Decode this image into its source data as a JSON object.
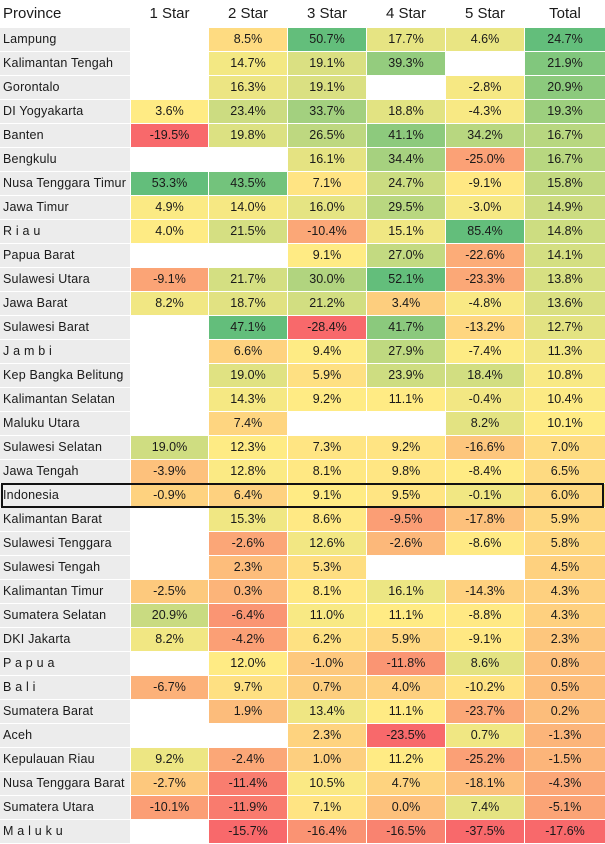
{
  "chart_data": {
    "type": "table",
    "columns": [
      "Province",
      "1 Star",
      "2 Star",
      "3 Star",
      "4 Star",
      "5 Star",
      "Total"
    ],
    "highlight_row": "Indonesia",
    "color_scale": {
      "low": "#f8696b",
      "mid": "#ffeb84",
      "high": "#63be7b"
    },
    "rows": [
      {
        "province": "Lampung",
        "values": [
          null,
          8.5,
          50.7,
          17.7,
          4.6,
          24.7
        ]
      },
      {
        "province": "Kalimantan Tengah",
        "values": [
          null,
          14.7,
          19.1,
          39.3,
          null,
          21.9
        ]
      },
      {
        "province": "Gorontalo",
        "values": [
          null,
          16.3,
          19.1,
          null,
          -2.8,
          20.9
        ]
      },
      {
        "province": "DI Yogyakarta",
        "values": [
          3.6,
          23.4,
          33.7,
          18.8,
          -4.3,
          19.3
        ]
      },
      {
        "province": "Banten",
        "values": [
          -19.5,
          19.8,
          26.5,
          41.1,
          34.2,
          16.7
        ]
      },
      {
        "province": "Bengkulu",
        "values": [
          null,
          null,
          16.1,
          34.4,
          -25.0,
          16.7
        ]
      },
      {
        "province": "Nusa Tenggara Timur",
        "values": [
          53.3,
          43.5,
          7.1,
          24.7,
          -9.1,
          15.8
        ]
      },
      {
        "province": "Jawa Timur",
        "values": [
          4.9,
          14.0,
          16.0,
          29.5,
          -3.0,
          14.9
        ]
      },
      {
        "province": "R i a u",
        "values": [
          4.0,
          21.5,
          -10.4,
          15.1,
          85.4,
          14.8
        ]
      },
      {
        "province": "Papua Barat",
        "values": [
          null,
          null,
          9.1,
          27.0,
          -22.6,
          14.1
        ]
      },
      {
        "province": "Sulawesi Utara",
        "values": [
          -9.1,
          21.7,
          30.0,
          52.1,
          -23.3,
          13.8
        ]
      },
      {
        "province": "Jawa Barat",
        "values": [
          8.2,
          18.7,
          21.2,
          3.4,
          -4.8,
          13.6
        ]
      },
      {
        "province": "Sulawesi Barat",
        "values": [
          null,
          47.1,
          -28.4,
          41.7,
          -13.2,
          12.7
        ]
      },
      {
        "province": "J a m b i",
        "values": [
          null,
          6.6,
          9.4,
          27.9,
          -7.4,
          11.3
        ]
      },
      {
        "province": "Kep Bangka Belitung",
        "values": [
          null,
          19.0,
          5.9,
          23.9,
          18.4,
          10.8
        ]
      },
      {
        "province": "Kalimantan Selatan",
        "values": [
          null,
          14.3,
          9.2,
          11.1,
          -0.4,
          10.4
        ]
      },
      {
        "province": "Maluku Utara",
        "values": [
          null,
          7.4,
          null,
          null,
          8.2,
          10.1
        ]
      },
      {
        "province": "Sulawesi Selatan",
        "values": [
          19.0,
          12.3,
          7.3,
          9.2,
          -16.6,
          7.0
        ]
      },
      {
        "province": "Jawa Tengah",
        "values": [
          -3.9,
          12.8,
          8.1,
          9.8,
          -8.4,
          6.5
        ]
      },
      {
        "province": "Indonesia",
        "values": [
          -0.9,
          6.4,
          9.1,
          9.5,
          -0.1,
          6.0
        ]
      },
      {
        "province": "Kalimantan Barat",
        "values": [
          null,
          15.3,
          8.6,
          -9.5,
          -17.8,
          5.9
        ]
      },
      {
        "province": "Sulawesi Tenggara",
        "values": [
          null,
          -2.6,
          12.6,
          -2.6,
          -8.6,
          5.8
        ]
      },
      {
        "province": "Sulawesi Tengah",
        "values": [
          null,
          2.3,
          5.3,
          null,
          null,
          4.5
        ]
      },
      {
        "province": "Kalimantan Timur",
        "values": [
          -2.5,
          0.3,
          8.1,
          16.1,
          -14.3,
          4.3
        ]
      },
      {
        "province": "Sumatera Selatan",
        "values": [
          20.9,
          -6.4,
          11.0,
          11.1,
          -8.8,
          4.3
        ]
      },
      {
        "province": "DKI Jakarta",
        "values": [
          8.2,
          -4.2,
          6.2,
          5.9,
          -9.1,
          2.3
        ]
      },
      {
        "province": "P a p u a",
        "values": [
          null,
          12.0,
          -1.0,
          -11.8,
          8.6,
          0.8
        ]
      },
      {
        "province": "B a l i",
        "values": [
          -6.7,
          9.7,
          0.7,
          4.0,
          -10.2,
          0.5
        ]
      },
      {
        "province": "Sumatera Barat",
        "values": [
          null,
          1.9,
          13.4,
          11.1,
          -23.7,
          0.2
        ]
      },
      {
        "province": "Aceh",
        "values": [
          null,
          null,
          2.3,
          -23.5,
          0.7,
          -1.3
        ]
      },
      {
        "province": "Kepulauan Riau",
        "values": [
          9.2,
          -2.4,
          1.0,
          11.2,
          -25.2,
          -1.5
        ]
      },
      {
        "province": "Nusa Tenggara Barat",
        "values": [
          -2.7,
          -11.4,
          10.5,
          4.7,
          -18.1,
          -4.3
        ]
      },
      {
        "province": "Sumatera Utara",
        "values": [
          -10.1,
          -11.9,
          7.1,
          0.0,
          7.4,
          -5.1
        ]
      },
      {
        "province": "M a l u k u",
        "values": [
          null,
          -15.7,
          -16.4,
          -16.5,
          -37.5,
          -17.6
        ]
      }
    ]
  }
}
